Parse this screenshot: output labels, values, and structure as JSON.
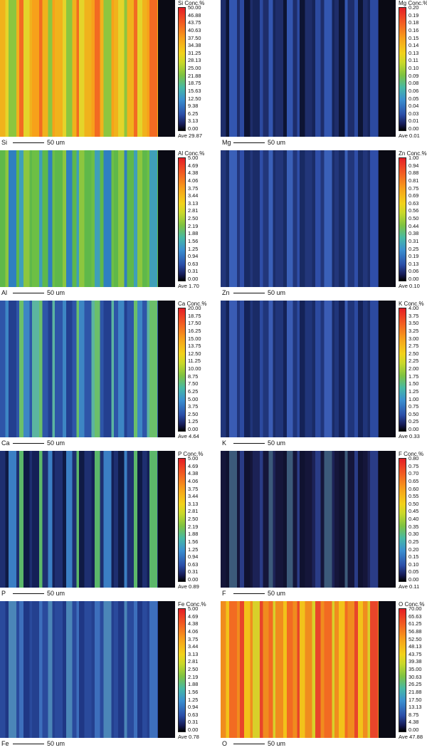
{
  "panels": [
    {
      "element": "Si",
      "title": "Si Conc.%",
      "ticks": [
        "50.00",
        "46.88",
        "43.75",
        "40.63",
        "37.50",
        "34.38",
        "31.25",
        "28.13",
        "25.00",
        "21.88",
        "18.75",
        "15.63",
        "12.50",
        "9.38",
        "6.25",
        "3.13",
        "0.00"
      ],
      "ave": "Ave 29.87",
      "scale": "50 um",
      "base": "#f0b21c",
      "bands": [
        "#f26b22",
        "#e4d42a",
        "#8cc63f",
        "#f7a11a"
      ]
    },
    {
      "element": "Mg",
      "title": "Mg Conc.%",
      "ticks": [
        "0.20",
        "0.19",
        "0.18",
        "0.16",
        "0.15",
        "0.14",
        "0.13",
        "0.11",
        "0.10",
        "0.09",
        "0.08",
        "0.06",
        "0.05",
        "0.04",
        "0.03",
        "0.01",
        "0.00"
      ],
      "ave": "Ave 0.01",
      "scale": "50 um",
      "base": "#1e2d6a",
      "bands": [
        "#2c4aa0",
        "#0d1433",
        "#3356b0",
        "#162459"
      ]
    },
    {
      "element": "Al",
      "title": "Al Conc.%",
      "ticks": [
        "5.00",
        "4.69",
        "4.38",
        "4.06",
        "3.75",
        "3.44",
        "3.13",
        "2.81",
        "2.50",
        "2.19",
        "1.88",
        "1.56",
        "1.25",
        "0.94",
        "0.63",
        "0.31",
        "0.00"
      ],
      "ave": "Ave 1.70",
      "scale": "50 um",
      "base": "#5fb84a",
      "bands": [
        "#3f9fb8",
        "#8cc63f",
        "#2f7fc0",
        "#6dbf45"
      ]
    },
    {
      "element": "Zn",
      "title": "Zn Conc.%",
      "ticks": [
        "1.00",
        "0.94",
        "0.88",
        "0.81",
        "0.75",
        "0.69",
        "0.63",
        "0.56",
        "0.50",
        "0.44",
        "0.38",
        "0.31",
        "0.25",
        "0.19",
        "0.13",
        "0.06",
        "0.00"
      ],
      "ave": "Ave 0.10",
      "scale": "50 um",
      "base": "#22367a",
      "bands": [
        "#2f4ea8",
        "#182a63",
        "#3a60b8",
        "#1b2c68"
      ]
    },
    {
      "element": "Ca",
      "title": "Ca Conc.%",
      "ticks": [
        "20.00",
        "18.75",
        "17.50",
        "16.25",
        "15.00",
        "13.75",
        "12.50",
        "11.25",
        "10.00",
        "8.75",
        "7.50",
        "6.25",
        "5.00",
        "3.75",
        "2.50",
        "1.25",
        "0.00"
      ],
      "ave": "Ave 4.64",
      "scale": "50 um",
      "base": "#2e55a8",
      "bands": [
        "#6bbf6a",
        "#3d86c4",
        "#233f8f",
        "#5cb5a0"
      ]
    },
    {
      "element": "K",
      "title": "K Conc.%",
      "ticks": [
        "4.00",
        "3.75",
        "3.50",
        "3.25",
        "3.00",
        "2.75",
        "2.50",
        "2.25",
        "2.00",
        "1.75",
        "1.50",
        "1.25",
        "1.00",
        "0.75",
        "0.50",
        "0.25",
        "0.00"
      ],
      "ave": "Ave 0.33",
      "scale": "50 um",
      "base": "#20357a",
      "bands": [
        "#2c4aa0",
        "#142257",
        "#3a5cb4",
        "#1a2b66"
      ]
    },
    {
      "element": "P",
      "title": "P Conc.%",
      "ticks": [
        "5.00",
        "4.69",
        "4.38",
        "4.06",
        "3.75",
        "3.44",
        "3.13",
        "2.81",
        "2.50",
        "2.19",
        "1.88",
        "1.56",
        "1.25",
        "0.94",
        "0.63",
        "0.31",
        "0.00"
      ],
      "ave": "Ave 0.89",
      "scale": "50 um",
      "base": "#1e2f70",
      "bands": [
        "#5cb86a",
        "#0f1a44",
        "#3b7fc4",
        "#142057"
      ]
    },
    {
      "element": "F",
      "title": "F Conc.%",
      "ticks": [
        "0.80",
        "0.75",
        "0.70",
        "0.65",
        "0.60",
        "0.55",
        "0.50",
        "0.45",
        "0.40",
        "0.35",
        "0.30",
        "0.25",
        "0.20",
        "0.15",
        "0.10",
        "0.05",
        "0.00"
      ],
      "ave": "Ave 0.11",
      "scale": "50 um",
      "base": "#15163a",
      "bands": [
        "#2a3c86",
        "#101230",
        "#3c5a7a",
        "#1c2256"
      ]
    },
    {
      "element": "Fe",
      "title": "Fe Conc.%",
      "ticks": [
        "5.00",
        "4.69",
        "4.38",
        "4.06",
        "3.75",
        "3.44",
        "3.13",
        "2.81",
        "2.50",
        "2.19",
        "1.88",
        "1.56",
        "1.25",
        "0.94",
        "0.63",
        "0.31",
        "0.00"
      ],
      "ave": "Ave 0.78",
      "scale": "50 um",
      "base": "#2a4a9c",
      "bands": [
        "#3d6fbc",
        "#1f3785",
        "#4b86b8",
        "#24408f"
      ]
    },
    {
      "element": "O",
      "title": "O Conc.%",
      "ticks": [
        "70.00",
        "65.63",
        "61.25",
        "56.88",
        "52.50",
        "48.13",
        "43.75",
        "39.38",
        "35.00",
        "30.63",
        "26.25",
        "21.88",
        "17.50",
        "13.13",
        "8.75",
        "4.38",
        "0.00"
      ],
      "ave": "Ave 47.88",
      "scale": "50 um",
      "base": "#f08c1e",
      "bands": [
        "#e8452a",
        "#f2c21a",
        "#f26b22",
        "#d8d02a"
      ]
    }
  ]
}
